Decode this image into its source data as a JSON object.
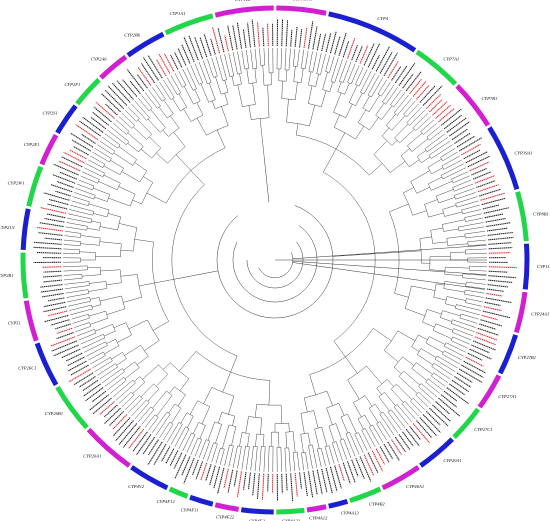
{
  "colors": {
    "magenta": "#d21fd2",
    "blue": "#1a1fcf",
    "green": "#22d64a",
    "branch": "#333333",
    "leaf_black": "#222222",
    "leaf_red": "#e0282d"
  },
  "families": [
    {
      "name": "CYP311A1",
      "start": 0,
      "end": 12,
      "color": "magenta"
    },
    {
      "name": "CYP4",
      "start": 12,
      "end": 34,
      "color": "blue"
    },
    {
      "name": "CYP7A1",
      "start": 34,
      "end": 46,
      "color": "green"
    },
    {
      "name": "CYP7B1",
      "start": 46,
      "end": 58,
      "color": "magenta"
    },
    {
      "name": "CYP39A1",
      "start": 58,
      "end": 74,
      "color": "blue"
    },
    {
      "name": "CYP8B1",
      "start": 74,
      "end": 86,
      "color": "green"
    },
    {
      "name": "CYP11A1",
      "start": 86,
      "end": 97,
      "color": "blue"
    },
    {
      "name": "CYP24A1",
      "start": 97,
      "end": 107,
      "color": "magenta"
    },
    {
      "name": "CYP27B1",
      "start": 107,
      "end": 117,
      "color": "blue"
    },
    {
      "name": "CYP27A1",
      "start": 117,
      "end": 126,
      "color": "magenta"
    },
    {
      "name": "CYP27C1",
      "start": 126,
      "end": 135,
      "color": "green"
    },
    {
      "name": "CYP20A1",
      "start": 135,
      "end": 145,
      "color": "blue"
    },
    {
      "name": "CYP46A1",
      "start": 145,
      "end": 155,
      "color": "magenta"
    },
    {
      "name": "CYP4B2",
      "start": 155,
      "end": 163,
      "color": "green"
    },
    {
      "name": "CYP4A13",
      "start": 163,
      "end": 168,
      "color": "blue"
    },
    {
      "name": "CYP4A12",
      "start": 168,
      "end": 173,
      "color": "magenta"
    },
    {
      "name": "CYP4A22",
      "start": 173,
      "end": 180,
      "color": "green"
    },
    {
      "name": "CYP4F2",
      "start": 180,
      "end": 188,
      "color": "blue"
    },
    {
      "name": "CYP4F22",
      "start": 188,
      "end": 194,
      "color": "magenta"
    },
    {
      "name": "CYP4F11",
      "start": 194,
      "end": 200,
      "color": "blue"
    },
    {
      "name": "CYP4F12",
      "start": 200,
      "end": 205,
      "color": "green"
    },
    {
      "name": "CYP4V2",
      "start": 205,
      "end": 215,
      "color": "blue"
    },
    {
      "name": "CYP26A1",
      "start": 215,
      "end": 228,
      "color": "magenta"
    },
    {
      "name": "CYP26B1",
      "start": 228,
      "end": 240,
      "color": "green"
    },
    {
      "name": "CYP26C1",
      "start": 240,
      "end": 251,
      "color": "blue"
    },
    {
      "name": "CYP51",
      "start": 251,
      "end": 261,
      "color": "magenta"
    },
    {
      "name": "CYP2R1",
      "start": 261,
      "end": 272,
      "color": "green"
    },
    {
      "name": "CYP2U1",
      "start": 272,
      "end": 282,
      "color": "blue"
    },
    {
      "name": "CYP2W1",
      "start": 282,
      "end": 292,
      "color": "green"
    },
    {
      "name": "CYP2E1",
      "start": 292,
      "end": 300,
      "color": "magenta"
    },
    {
      "name": "CYP2S1",
      "start": 300,
      "end": 308,
      "color": "blue"
    },
    {
      "name": "CYP2F1",
      "start": 308,
      "end": 316,
      "color": "green"
    },
    {
      "name": "CYP2A6",
      "start": 316,
      "end": 324,
      "color": "magenta"
    },
    {
      "name": "CYP2B6",
      "start": 324,
      "end": 334,
      "color": "blue"
    },
    {
      "name": "CYP1A1",
      "start": 334,
      "end": 346,
      "color": "green"
    },
    {
      "name": "CYP1B1",
      "start": 346,
      "end": 360,
      "color": "magenta"
    }
  ]
}
